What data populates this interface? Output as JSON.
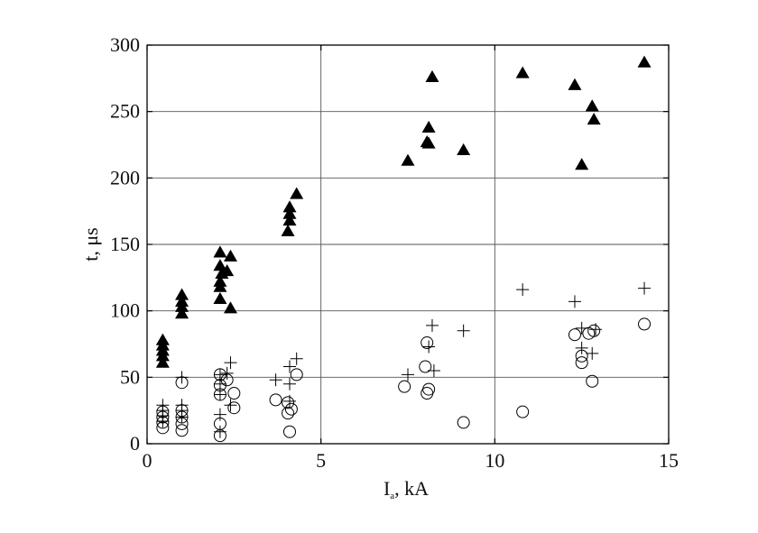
{
  "chart_data": {
    "type": "scatter",
    "title": "",
    "xlabel": "I",
    "xlabel_subscript": "a",
    "xlabel_unit": ", kA",
    "ylabel": "t, μs",
    "xlim": [
      0,
      15
    ],
    "ylim": [
      0,
      300
    ],
    "x_ticks": [
      0,
      5,
      10,
      15
    ],
    "y_ticks": [
      0,
      50,
      100,
      150,
      200,
      250,
      300
    ],
    "grid": true,
    "legend": "none",
    "series": [
      {
        "marker": "filled-triangle",
        "color": "#000000",
        "points": [
          [
            0.45,
            78
          ],
          [
            0.45,
            74
          ],
          [
            0.45,
            70
          ],
          [
            0.45,
            66
          ],
          [
            0.45,
            61
          ],
          [
            1.0,
            112
          ],
          [
            1.0,
            107
          ],
          [
            1.0,
            103
          ],
          [
            1.0,
            98
          ],
          [
            2.1,
            144
          ],
          [
            2.1,
            134
          ],
          [
            2.15,
            128
          ],
          [
            2.1,
            122
          ],
          [
            2.1,
            118
          ],
          [
            2.1,
            109
          ],
          [
            2.4,
            141
          ],
          [
            2.3,
            130
          ],
          [
            2.4,
            102
          ],
          [
            4.1,
            178
          ],
          [
            4.1,
            173
          ],
          [
            4.1,
            168
          ],
          [
            4.05,
            160
          ],
          [
            4.3,
            188
          ],
          [
            7.5,
            213
          ],
          [
            8.2,
            276
          ],
          [
            8.1,
            238
          ],
          [
            8.05,
            227
          ],
          [
            8.1,
            226
          ],
          [
            9.1,
            221
          ],
          [
            10.8,
            279
          ],
          [
            12.3,
            270
          ],
          [
            12.5,
            210
          ],
          [
            12.8,
            254
          ],
          [
            12.85,
            244
          ],
          [
            14.3,
            287
          ]
        ]
      },
      {
        "marker": "plus",
        "color": "#000000",
        "points": [
          [
            0.45,
            29
          ],
          [
            0.45,
            25
          ],
          [
            0.45,
            21
          ],
          [
            0.45,
            17
          ],
          [
            1.0,
            50
          ],
          [
            1.0,
            29
          ],
          [
            1.0,
            25
          ],
          [
            1.0,
            20
          ],
          [
            2.1,
            52
          ],
          [
            2.1,
            45
          ],
          [
            2.1,
            37
          ],
          [
            2.1,
            22
          ],
          [
            2.1,
            9
          ],
          [
            2.3,
            53
          ],
          [
            2.4,
            61
          ],
          [
            2.4,
            29
          ],
          [
            3.7,
            48
          ],
          [
            4.1,
            58
          ],
          [
            4.1,
            45
          ],
          [
            4.1,
            32
          ],
          [
            4.3,
            64
          ],
          [
            7.5,
            52
          ],
          [
            8.1,
            73
          ],
          [
            8.2,
            89
          ],
          [
            8.25,
            55
          ],
          [
            9.1,
            85
          ],
          [
            10.8,
            116
          ],
          [
            12.3,
            107
          ],
          [
            12.5,
            87
          ],
          [
            12.5,
            72
          ],
          [
            12.8,
            68
          ],
          [
            12.9,
            86
          ],
          [
            14.3,
            117
          ]
        ]
      },
      {
        "marker": "open-circle",
        "color": "#000000",
        "points": [
          [
            0.45,
            24
          ],
          [
            0.45,
            20
          ],
          [
            0.45,
            16
          ],
          [
            0.45,
            12
          ],
          [
            1.0,
            46
          ],
          [
            1.0,
            25
          ],
          [
            1.0,
            20
          ],
          [
            1.0,
            15
          ],
          [
            1.0,
            10
          ],
          [
            2.1,
            52
          ],
          [
            2.1,
            44
          ],
          [
            2.1,
            37
          ],
          [
            2.1,
            15
          ],
          [
            2.1,
            6
          ],
          [
            2.3,
            48
          ],
          [
            2.5,
            38
          ],
          [
            2.5,
            27
          ],
          [
            3.7,
            33
          ],
          [
            4.05,
            31
          ],
          [
            4.05,
            23
          ],
          [
            4.1,
            9
          ],
          [
            4.15,
            26
          ],
          [
            4.3,
            52
          ],
          [
            7.4,
            43
          ],
          [
            8.05,
            76
          ],
          [
            8.0,
            58
          ],
          [
            8.1,
            41
          ],
          [
            8.05,
            38
          ],
          [
            9.1,
            16
          ],
          [
            10.8,
            24
          ],
          [
            12.3,
            82
          ],
          [
            12.5,
            66
          ],
          [
            12.5,
            61
          ],
          [
            12.7,
            83
          ],
          [
            12.85,
            85
          ],
          [
            12.8,
            47
          ],
          [
            14.3,
            90
          ]
        ]
      }
    ]
  }
}
